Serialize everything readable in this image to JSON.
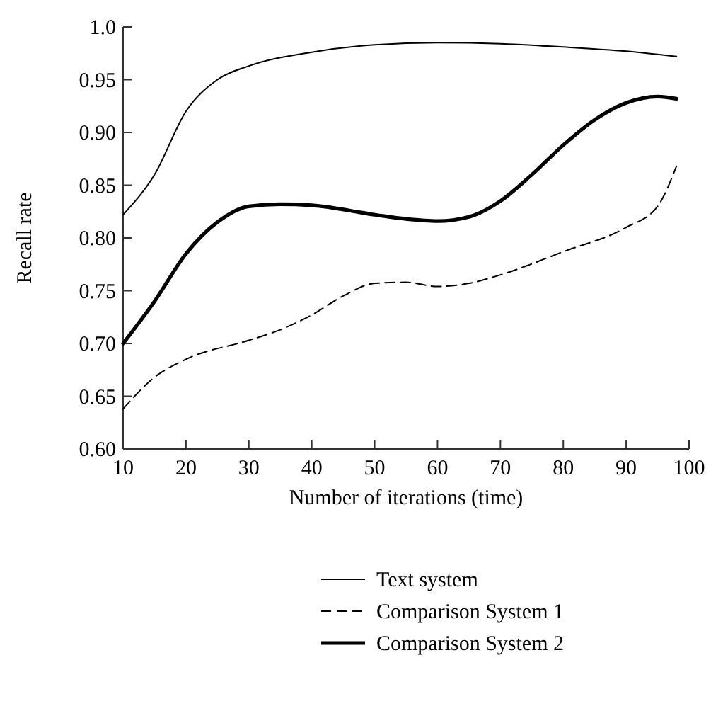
{
  "chart_data": {
    "type": "line",
    "xlabel": "Number of iterations (time)",
    "ylabel": "Recall rate",
    "xlim": [
      10,
      100
    ],
    "xticks": [
      10,
      20,
      30,
      40,
      50,
      60,
      70,
      80,
      90,
      100
    ],
    "ylim": [
      0.6,
      1.0
    ],
    "yticks": [
      {
        "value": 0.6,
        "label": "0.60"
      },
      {
        "value": 0.65,
        "label": "0.65"
      },
      {
        "value": 0.7,
        "label": "0.70"
      },
      {
        "value": 0.75,
        "label": "0.75"
      },
      {
        "value": 0.8,
        "label": "0.80"
      },
      {
        "value": 0.85,
        "label": "0.85"
      },
      {
        "value": 0.9,
        "label": "0.90"
      },
      {
        "value": 0.95,
        "label": "0.95"
      },
      {
        "value": 1.0,
        "label": "1.0"
      }
    ],
    "grid": false,
    "legend": "bottom",
    "marker": "none",
    "series": [
      {
        "name": "Text system",
        "color": "#000000",
        "line_style": "solid",
        "x": [
          10,
          15,
          20,
          25,
          30,
          40,
          50,
          60,
          70,
          80,
          90,
          98
        ],
        "values": [
          0.822,
          0.86,
          0.92,
          0.95,
          0.963,
          0.976,
          0.983,
          0.985,
          0.984,
          0.981,
          0.977,
          0.972
        ]
      },
      {
        "name": "Comparison System 1",
        "color": "#000000",
        "line_style": "dashed",
        "x": [
          10,
          15,
          20,
          30,
          35,
          40,
          45,
          50,
          55,
          60,
          65,
          70,
          80,
          90,
          95,
          98
        ],
        "values": [
          0.638,
          0.668,
          0.685,
          0.703,
          0.713,
          0.727,
          0.745,
          0.757,
          0.758,
          0.754,
          0.757,
          0.765,
          0.787,
          0.81,
          0.83,
          0.868
        ]
      },
      {
        "name": "Comparison System 2",
        "color": "#000000",
        "line_style": "solid",
        "x": [
          10,
          15,
          20,
          25,
          30,
          35,
          40,
          50,
          55,
          60,
          65,
          70,
          75,
          80,
          85,
          90,
          95,
          98
        ],
        "values": [
          0.7,
          0.74,
          0.785,
          0.815,
          0.83,
          0.832,
          0.831,
          0.822,
          0.818,
          0.816,
          0.82,
          0.835,
          0.86,
          0.888,
          0.912,
          0.928,
          0.934,
          0.932
        ]
      }
    ]
  }
}
